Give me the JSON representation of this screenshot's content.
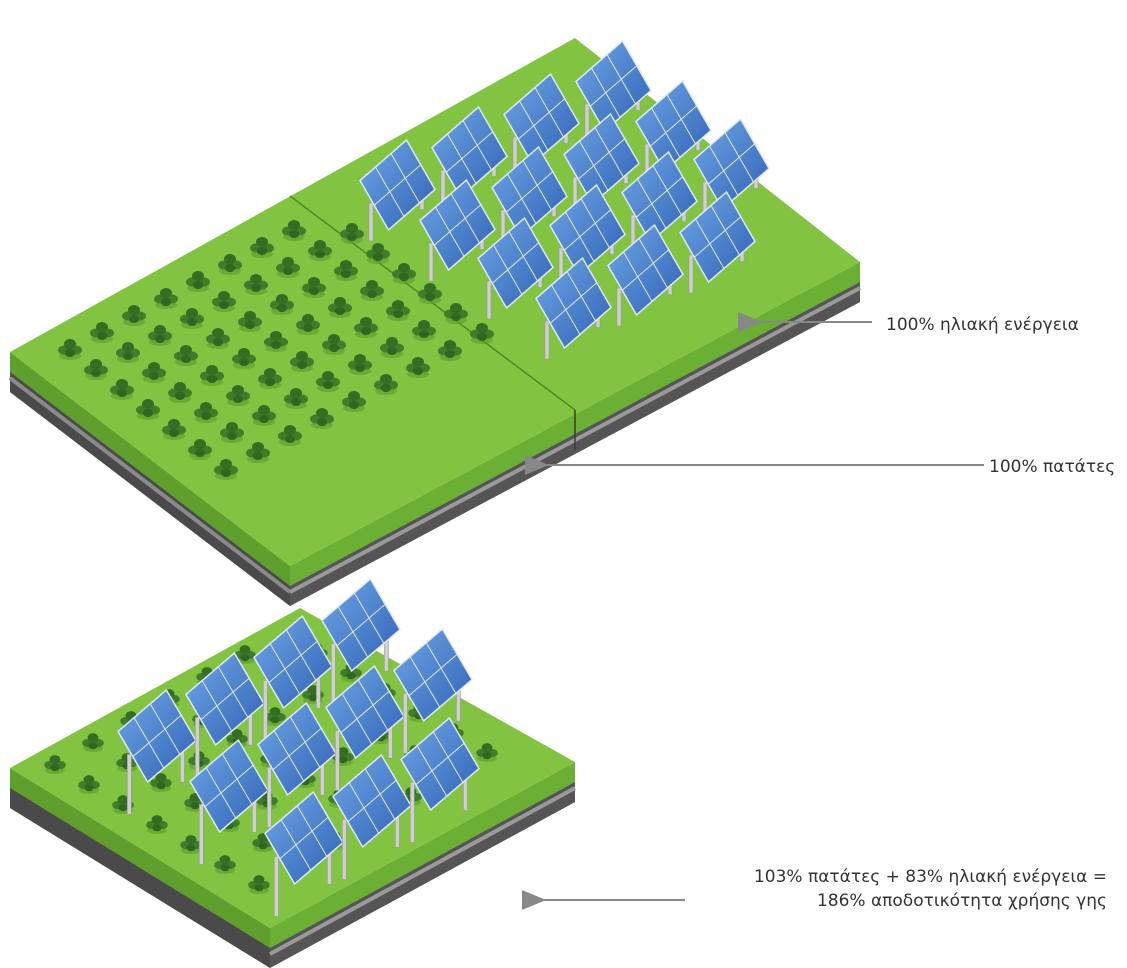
{
  "labels": {
    "solar_only": "100% ηλιακή ενέργεια",
    "potato_only": "100% πατάτες",
    "agrivoltaic_line1": "103% πατάτες + 83% ηλιακή ενέργεια =",
    "agrivoltaic_line2": "186% αποδοτικότητα χρήσης γης"
  },
  "colors": {
    "grass": "#7fbf3f",
    "grass_dark": "#5c9a2a",
    "soil": "#4a4a4a",
    "panel": "#4f83cf",
    "plant": "#3f7d2a",
    "arrow": "#888888"
  }
}
